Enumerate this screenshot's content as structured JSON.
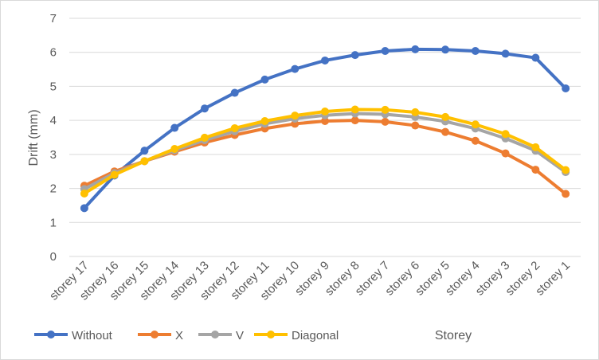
{
  "chart_data": {
    "type": "line",
    "title": "",
    "xlabel": "Storey",
    "ylabel": "Drift (mm)",
    "ylim": [
      0,
      7
    ],
    "yticks": [
      0,
      1,
      2,
      3,
      4,
      5,
      6,
      7
    ],
    "grid": "horizontal",
    "legend_position": "bottom-left",
    "categories": [
      "storey 17",
      "storey 16",
      "storey 15",
      "storey 14",
      "storey 13",
      "storey 12",
      "storey 11",
      "storey 10",
      "storey 9",
      "storey 8",
      "storey 7",
      "storey 6",
      "storey 5",
      "storey 4",
      "storey 3",
      "storey 2",
      "storey 1"
    ],
    "series": [
      {
        "name": "Without",
        "color": "#4472c4",
        "values": [
          1.42,
          2.38,
          3.11,
          3.78,
          4.35,
          4.81,
          5.2,
          5.51,
          5.76,
          5.92,
          6.04,
          6.09,
          6.08,
          6.04,
          5.96,
          5.84,
          4.94
        ]
      },
      {
        "name": "X",
        "color": "#ed7d31",
        "values": [
          2.08,
          2.5,
          2.8,
          3.08,
          3.35,
          3.57,
          3.76,
          3.9,
          3.98,
          4.0,
          3.96,
          3.85,
          3.66,
          3.4,
          3.03,
          2.55,
          1.84
        ]
      },
      {
        "name": "V",
        "color": "#a5a5a5",
        "values": [
          1.98,
          2.45,
          2.8,
          3.12,
          3.42,
          3.68,
          3.9,
          4.05,
          4.15,
          4.2,
          4.18,
          4.1,
          3.97,
          3.76,
          3.47,
          3.11,
          2.48
        ]
      },
      {
        "name": "Diagonal",
        "color": "#ffc000",
        "values": [
          1.85,
          2.4,
          2.8,
          3.16,
          3.49,
          3.77,
          3.98,
          4.14,
          4.26,
          4.32,
          4.31,
          4.24,
          4.1,
          3.88,
          3.6,
          3.21,
          2.54
        ]
      }
    ]
  }
}
